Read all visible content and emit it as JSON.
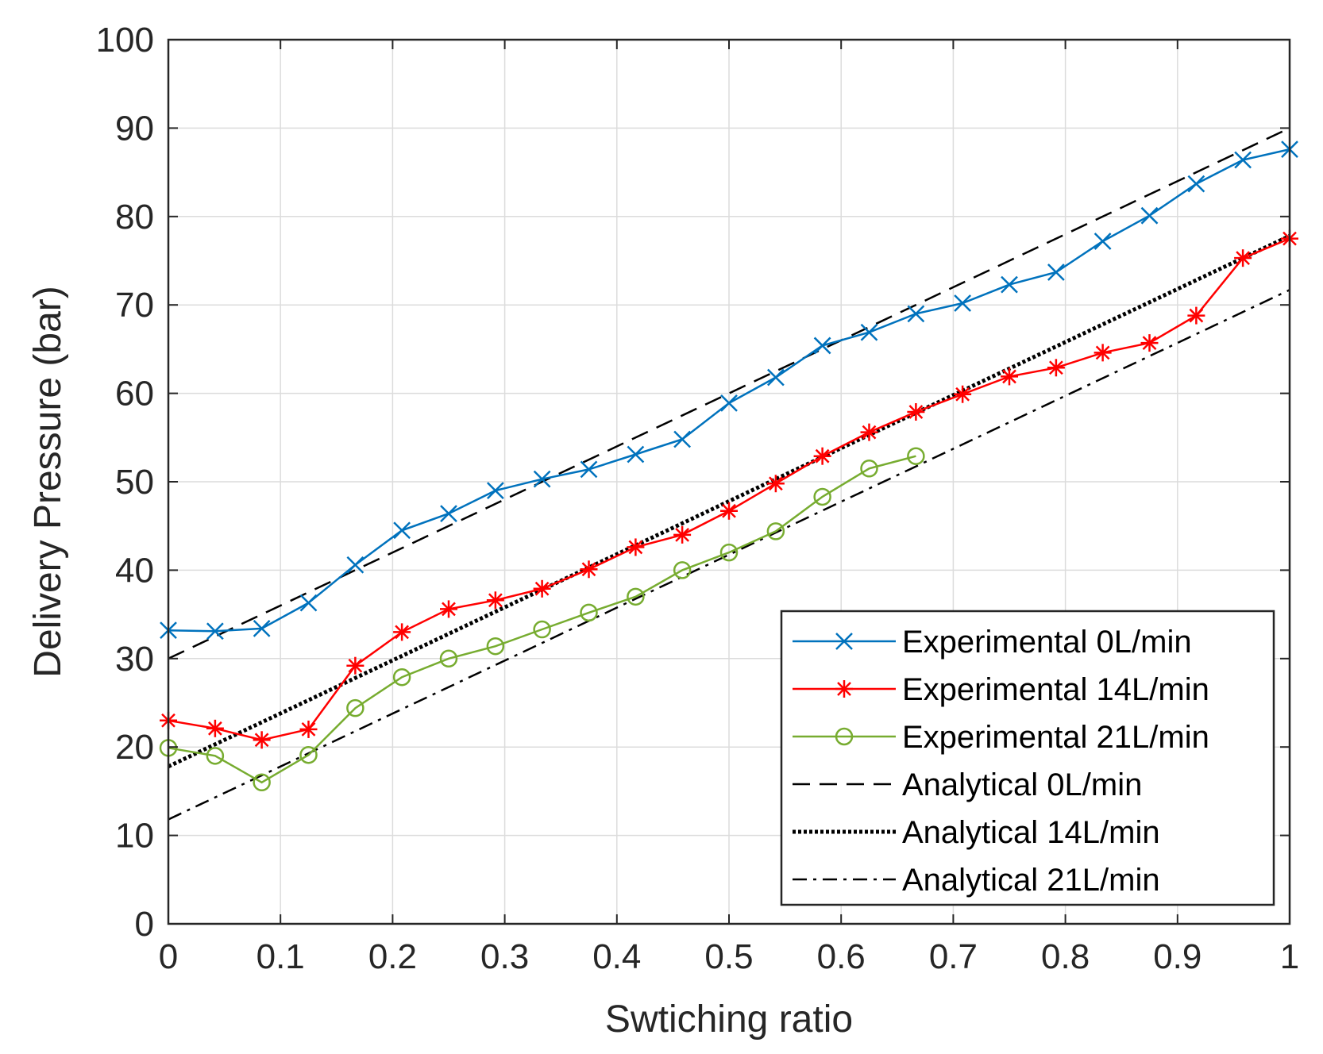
{
  "chart_data": {
    "type": "line",
    "title": "",
    "xlabel": "Swtiching ratio",
    "ylabel": "Delivery Pressure (bar)",
    "xlim": [
      0,
      1
    ],
    "ylim": [
      0,
      100
    ],
    "xticks": [
      0,
      0.1,
      0.2,
      0.3,
      0.4,
      0.5,
      0.6,
      0.7,
      0.8,
      0.9,
      1
    ],
    "xtick_labels": [
      "0",
      "0.1",
      "0.2",
      "0.3",
      "0.4",
      "0.5",
      "0.6",
      "0.7",
      "0.8",
      "0.9",
      "1"
    ],
    "yticks": [
      0,
      10,
      20,
      30,
      40,
      50,
      60,
      70,
      80,
      90,
      100
    ],
    "ytick_labels": [
      "0",
      "10",
      "20",
      "30",
      "40",
      "50",
      "60",
      "70",
      "80",
      "90",
      "100"
    ],
    "grid": true,
    "legend_position": "bottom-right",
    "series": [
      {
        "name": "Experimental 0L/min",
        "color": "#0072BD",
        "marker": "x",
        "style": "solid",
        "x": [
          0,
          0.0417,
          0.0833,
          0.125,
          0.1667,
          0.2083,
          0.25,
          0.2917,
          0.3333,
          0.375,
          0.4167,
          0.4583,
          0.5,
          0.5417,
          0.5833,
          0.625,
          0.6667,
          0.7083,
          0.75,
          0.7917,
          0.8333,
          0.875,
          0.9167,
          0.9583,
          1
        ],
        "y": [
          33.2,
          33.1,
          33.4,
          36.3,
          40.6,
          44.5,
          46.4,
          49.0,
          50.3,
          51.4,
          53.1,
          54.8,
          58.9,
          61.8,
          65.4,
          66.9,
          69.0,
          70.2,
          72.3,
          73.7,
          77.2,
          80.1,
          83.7,
          86.4,
          87.6
        ]
      },
      {
        "name": "Experimental 14L/min",
        "color": "#FF0000",
        "marker": "*",
        "style": "solid",
        "x": [
          0,
          0.0417,
          0.0833,
          0.125,
          0.1667,
          0.2083,
          0.25,
          0.2917,
          0.3333,
          0.375,
          0.4167,
          0.4583,
          0.5,
          0.5417,
          0.5833,
          0.625,
          0.6667,
          0.7083,
          0.75,
          0.7917,
          0.8333,
          0.875,
          0.9167,
          0.9583,
          1
        ],
        "y": [
          23.0,
          22.1,
          20.8,
          22.0,
          29.2,
          33.0,
          35.6,
          36.6,
          37.9,
          40.1,
          42.6,
          44.0,
          46.7,
          49.8,
          52.9,
          55.6,
          57.9,
          59.9,
          61.9,
          62.9,
          64.6,
          65.7,
          68.8,
          75.3,
          77.5
        ]
      },
      {
        "name": "Experimental 21L/min",
        "color": "#77AC30",
        "marker": "o",
        "style": "solid",
        "x": [
          0,
          0.0417,
          0.0833,
          0.125,
          0.1667,
          0.2083,
          0.25,
          0.2917,
          0.3333,
          0.375,
          0.4167,
          0.4583,
          0.5,
          0.5417,
          0.5833,
          0.625,
          0.6667
        ],
        "y": [
          19.9,
          19.0,
          16.0,
          19.1,
          24.4,
          27.9,
          30.0,
          31.4,
          33.3,
          35.2,
          37.0,
          40.0,
          42.0,
          44.4,
          48.3,
          51.5,
          52.9
        ]
      },
      {
        "name": "Analytical 0L/min",
        "color": "#000000",
        "marker": "none",
        "style": "dashed",
        "x": [
          0,
          1
        ],
        "y": [
          30.0,
          90.0
        ]
      },
      {
        "name": "Analytical 14L/min",
        "color": "#000000",
        "marker": "none",
        "style": "dotted",
        "x": [
          0,
          1
        ],
        "y": [
          17.8,
          77.8
        ]
      },
      {
        "name": "Analytical 21L/min",
        "color": "#000000",
        "marker": "none",
        "style": "dashdot",
        "x": [
          0,
          1
        ],
        "y": [
          11.8,
          71.7
        ]
      }
    ]
  }
}
